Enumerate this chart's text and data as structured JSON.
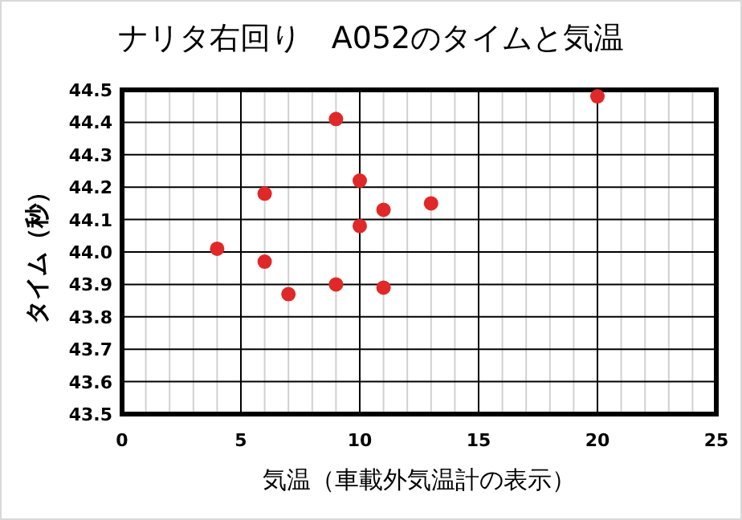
{
  "chart_data": {
    "type": "scatter",
    "title": "ナリタ右回り　A052のタイムと気温",
    "xlabel": "気温（車載外気温計の表示）",
    "ylabel": "タイム（秒）",
    "x": [
      4,
      6,
      6,
      7,
      9,
      9,
      10,
      10,
      11,
      11,
      13,
      20
    ],
    "series": [
      {
        "color": "#e02828",
        "values": [
          44.01,
          44.18,
          43.97,
          43.87,
          44.41,
          43.9,
          44.22,
          44.08,
          44.13,
          43.89,
          44.15,
          44.48
        ]
      }
    ],
    "xlim": [
      0,
      25
    ],
    "xticks": [
      0,
      {
        "value": 1,
        "label": null
      },
      {
        "value": 2,
        "label": null
      },
      {
        "value": 3,
        "label": null
      },
      {
        "value": 4,
        "label": null
      },
      5,
      {
        "value": 6,
        "label": null
      },
      {
        "value": 7,
        "label": null
      },
      {
        "value": 8,
        "label": null
      },
      {
        "value": 9,
        "label": null
      },
      10,
      {
        "value": 11,
        "label": null
      },
      {
        "value": 12,
        "label": null
      },
      {
        "value": 13,
        "label": null
      },
      {
        "value": 14,
        "label": null
      },
      15,
      {
        "value": 16,
        "label": null
      },
      {
        "value": 17,
        "label": null
      },
      {
        "value": 18,
        "label": null
      },
      {
        "value": 19,
        "label": null
      },
      20,
      {
        "value": 21,
        "label": null
      },
      {
        "value": 22,
        "label": null
      },
      {
        "value": 23,
        "label": null
      },
      {
        "value": 24,
        "label": null
      },
      25
    ],
    "ylim": [
      43.5,
      44.5
    ],
    "yticks": [
      43.5,
      43.6,
      43.7,
      43.8,
      43.9,
      {
        "value": 44,
        "label": "44.0"
      },
      44.1,
      44.2,
      44.3,
      44.4,
      44.5
    ],
    "grid": true,
    "marker": "circle"
  }
}
